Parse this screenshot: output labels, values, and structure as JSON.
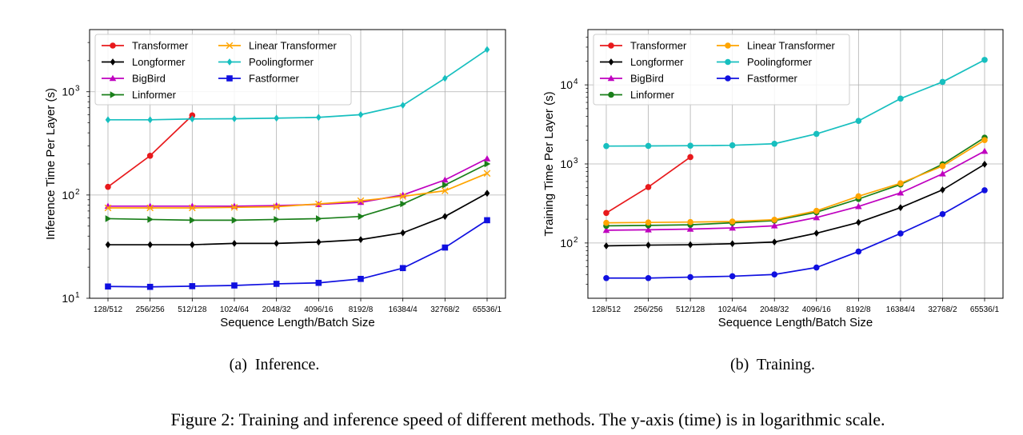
{
  "caption": "Figure 2: Training and inference speed of different methods. The y-axis (time) is in logarithmic scale.",
  "colors": {
    "Transformer": "#e8191c",
    "Longformer": "#000000",
    "BigBird": "#bf00bf",
    "Linformer": "#1a7f1a",
    "Linear Transformer": "#ffa500",
    "Poolingformer": "#17bfbf",
    "Fastformer": "#1010e0"
  },
  "chart_data": [
    {
      "type": "line",
      "subcaption": "(a)  Inference.",
      "xlabel": "Sequence Length/Batch Size",
      "ylabel": "Inference Time Per Layer (s)",
      "yscale": "log",
      "ylim": [
        10,
        4000
      ],
      "yticks": [
        {
          "value": 10,
          "base": "10",
          "exp": "1"
        },
        {
          "value": 100,
          "base": "10",
          "exp": "2"
        },
        {
          "value": 1000,
          "base": "10",
          "exp": "3"
        }
      ],
      "grid": true,
      "legend_position": "top-left",
      "categories": [
        "128/512",
        "256/256",
        "512/128",
        "1024/64",
        "2048/32",
        "4096/16",
        "8192/8",
        "16384/4",
        "32768/2",
        "65536/1"
      ],
      "series": [
        {
          "name": "Transformer",
          "marker": "circle",
          "values": [
            120,
            240,
            590,
            null,
            null,
            null,
            null,
            null,
            null,
            null
          ]
        },
        {
          "name": "Longformer",
          "marker": "diamond",
          "values": [
            33,
            33,
            33,
            34,
            34,
            35,
            37,
            43,
            62,
            104
          ]
        },
        {
          "name": "BigBird",
          "marker": "triangle",
          "values": [
            78,
            78,
            78,
            78,
            79,
            81,
            85,
            100,
            140,
            225
          ]
        },
        {
          "name": "Linformer",
          "marker": "triangle-right",
          "values": [
            59,
            58,
            57,
            57,
            58,
            59,
            62,
            82,
            125,
            200
          ]
        },
        {
          "name": "Linear Transformer",
          "marker": "x",
          "values": [
            75,
            75,
            75,
            76,
            77,
            82,
            88,
            97,
            110,
            162
          ]
        },
        {
          "name": "Poolingformer",
          "marker": "diamond-filled",
          "values": [
            535,
            535,
            545,
            548,
            555,
            565,
            600,
            740,
            1350,
            2560
          ]
        },
        {
          "name": "Fastformer",
          "marker": "square",
          "values": [
            13,
            12.9,
            13.1,
            13.3,
            13.8,
            14.1,
            15.4,
            19.6,
            31,
            57
          ]
        }
      ]
    },
    {
      "type": "line",
      "subcaption": "(b)  Training.",
      "xlabel": "Sequence Length/Batch Size",
      "ylabel": "Training Time Per Layer (s)",
      "yscale": "log",
      "ylim": [
        20,
        50000
      ],
      "yticks": [
        {
          "value": 100,
          "base": "10",
          "exp": "2"
        },
        {
          "value": 1000,
          "base": "10",
          "exp": "3"
        },
        {
          "value": 10000,
          "base": "10",
          "exp": "4"
        }
      ],
      "grid": true,
      "legend_position": "top-left",
      "categories": [
        "128/512",
        "256/256",
        "512/128",
        "1024/64",
        "2048/32",
        "4096/16",
        "8192/8",
        "16384/4",
        "32768/2",
        "65536/1"
      ],
      "series": [
        {
          "name": "Transformer",
          "marker": "circle",
          "values": [
            240,
            510,
            1220,
            null,
            null,
            null,
            null,
            null,
            null,
            null
          ]
        },
        {
          "name": "Longformer",
          "marker": "diamond",
          "values": [
            92,
            94,
            95,
            98,
            103,
            133,
            182,
            280,
            470,
            990
          ]
        },
        {
          "name": "BigBird",
          "marker": "triangle",
          "values": [
            145,
            147,
            150,
            155,
            165,
            210,
            290,
            430,
            750,
            1450
          ]
        },
        {
          "name": "Linformer",
          "marker": "circle",
          "values": [
            165,
            167,
            170,
            180,
            192,
            245,
            360,
            550,
            990,
            2150
          ]
        },
        {
          "name": "Linear Transformer",
          "marker": "circle",
          "values": [
            180,
            182,
            184,
            187,
            197,
            255,
            390,
            570,
            940,
            2000
          ]
        },
        {
          "name": "Poolingformer",
          "marker": "circle",
          "values": [
            1680,
            1690,
            1700,
            1720,
            1800,
            2400,
            3500,
            6700,
            10900,
            20700
          ]
        },
        {
          "name": "Fastformer",
          "marker": "circle",
          "values": [
            36,
            36,
            37,
            38,
            40,
            49,
            78,
            132,
            232,
            465
          ]
        }
      ]
    }
  ]
}
